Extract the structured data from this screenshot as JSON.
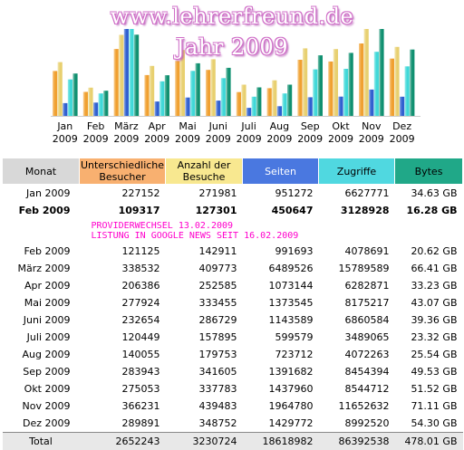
{
  "title": {
    "line1": "www.lehrerfreund.de",
    "line2": "Jahr 2009"
  },
  "chart_data": {
    "type": "bar",
    "categories": [
      "Jan 2009",
      "Feb 2009",
      "März 2009",
      "Apr 2009",
      "Mai 2009",
      "Juni 2009",
      "Juli 2009",
      "Aug 2009",
      "Sep 2009",
      "Okt 2009",
      "Nov 2009",
      "Dez 2009"
    ],
    "tick_labels": [
      {
        "month": "Jan",
        "year": "2009"
      },
      {
        "month": "Feb",
        "year": "2009"
      },
      {
        "month": "März",
        "year": "2009"
      },
      {
        "month": "Apr",
        "year": "2009"
      },
      {
        "month": "Mai",
        "year": "2009"
      },
      {
        "month": "Juni",
        "year": "2009"
      },
      {
        "month": "Juli",
        "year": "2009"
      },
      {
        "month": "Aug",
        "year": "2009"
      },
      {
        "month": "Sep",
        "year": "2009"
      },
      {
        "month": "Okt",
        "year": "2009"
      },
      {
        "month": "Nov",
        "year": "2009"
      },
      {
        "month": "Dez",
        "year": "2009"
      }
    ],
    "series": [
      {
        "name": "Unterschiedliche Besucher",
        "color": "#f0a030",
        "values": [
          227152,
          121125,
          338532,
          206386,
          277924,
          232654,
          120449,
          140055,
          283943,
          275053,
          366231,
          289891
        ]
      },
      {
        "name": "Anzahl der Besuche",
        "color": "#e8d070",
        "values": [
          271981,
          142911,
          409773,
          252585,
          333455,
          286729,
          157895,
          179753,
          341605,
          337783,
          439483,
          348752
        ]
      },
      {
        "name": "Seiten",
        "color": "#3060d0",
        "values": [
          951272,
          991693,
          6489526,
          1073144,
          1373545,
          1143589,
          599579,
          723712,
          1391682,
          1437960,
          1964780,
          1429772
        ]
      },
      {
        "name": "Zugriffe",
        "color": "#40d8d8",
        "values": [
          6627771,
          4078691,
          15789589,
          6282871,
          8175217,
          6860584,
          3489065,
          4072263,
          8454394,
          8544712,
          11652632,
          8992520
        ]
      },
      {
        "name": "Bytes",
        "color": "#109070",
        "values": [
          34.63,
          20.62,
          66.41,
          33.23,
          43.07,
          39.36,
          23.32,
          25.54,
          49.53,
          51.52,
          71.11,
          54.3
        ]
      }
    ],
    "series_max": [
      439483,
      439483,
      6489526,
      15789589,
      71.11
    ],
    "legend": "none",
    "grid": false
  },
  "table": {
    "headers": [
      {
        "label": "Monat",
        "bg": "#d8d8d8"
      },
      {
        "label": "Unterschiedliche Besucher",
        "bg": "#f8b070"
      },
      {
        "label": "Anzahl der Besuche",
        "bg": "#f8e890"
      },
      {
        "label": "Seiten",
        "bg": "#4a78e0",
        "color": "#ffffff"
      },
      {
        "label": "Zugriffe",
        "bg": "#50d8e0"
      },
      {
        "label": "Bytes",
        "bg": "#20a888"
      }
    ],
    "rows": [
      {
        "month": "Jan 2009",
        "uniq": "227152",
        "visits": "271981",
        "pages": "951272",
        "hits": "6627771",
        "bytes": "34.63 GB"
      },
      {
        "month": "Feb 2009",
        "uniq": "109317",
        "visits": "127301",
        "pages": "450647",
        "hits": "3128928",
        "bytes": "16.28 GB",
        "bold": true
      },
      {
        "note": [
          "PROVIDERWECHSEL 13.02.2009",
          "LISTUNG IN GOOGLE NEWS SEIT 16.02.2009"
        ]
      },
      {
        "month": "Feb 2009",
        "uniq": "121125",
        "visits": "142911",
        "pages": "991693",
        "hits": "4078691",
        "bytes": "20.62 GB"
      },
      {
        "month": "März 2009",
        "uniq": "338532",
        "visits": "409773",
        "pages": "6489526",
        "hits": "15789589",
        "bytes": "66.41 GB"
      },
      {
        "month": "Apr 2009",
        "uniq": "206386",
        "visits": "252585",
        "pages": "1073144",
        "hits": "6282871",
        "bytes": "33.23 GB"
      },
      {
        "month": "Mai 2009",
        "uniq": "277924",
        "visits": "333455",
        "pages": "1373545",
        "hits": "8175217",
        "bytes": "43.07 GB"
      },
      {
        "month": "Juni 2009",
        "uniq": "232654",
        "visits": "286729",
        "pages": "1143589",
        "hits": "6860584",
        "bytes": "39.36 GB"
      },
      {
        "month": "Juli 2009",
        "uniq": "120449",
        "visits": "157895",
        "pages": "599579",
        "hits": "3489065",
        "bytes": "23.32 GB"
      },
      {
        "month": "Aug 2009",
        "uniq": "140055",
        "visits": "179753",
        "pages": "723712",
        "hits": "4072263",
        "bytes": "25.54 GB"
      },
      {
        "month": "Sep 2009",
        "uniq": "283943",
        "visits": "341605",
        "pages": "1391682",
        "hits": "8454394",
        "bytes": "49.53 GB"
      },
      {
        "month": "Okt 2009",
        "uniq": "275053",
        "visits": "337783",
        "pages": "1437960",
        "hits": "8544712",
        "bytes": "51.52 GB"
      },
      {
        "month": "Nov 2009",
        "uniq": "366231",
        "visits": "439483",
        "pages": "1964780",
        "hits": "11652632",
        "bytes": "71.11 GB"
      },
      {
        "month": "Dez 2009",
        "uniq": "289891",
        "visits": "348752",
        "pages": "1429772",
        "hits": "8992520",
        "bytes": "54.30 GB"
      }
    ],
    "total": {
      "month": "Total",
      "uniq": "2652243",
      "visits": "3230724",
      "pages": "18618982",
      "hits": "86392538",
      "bytes": "478.01 GB"
    }
  }
}
